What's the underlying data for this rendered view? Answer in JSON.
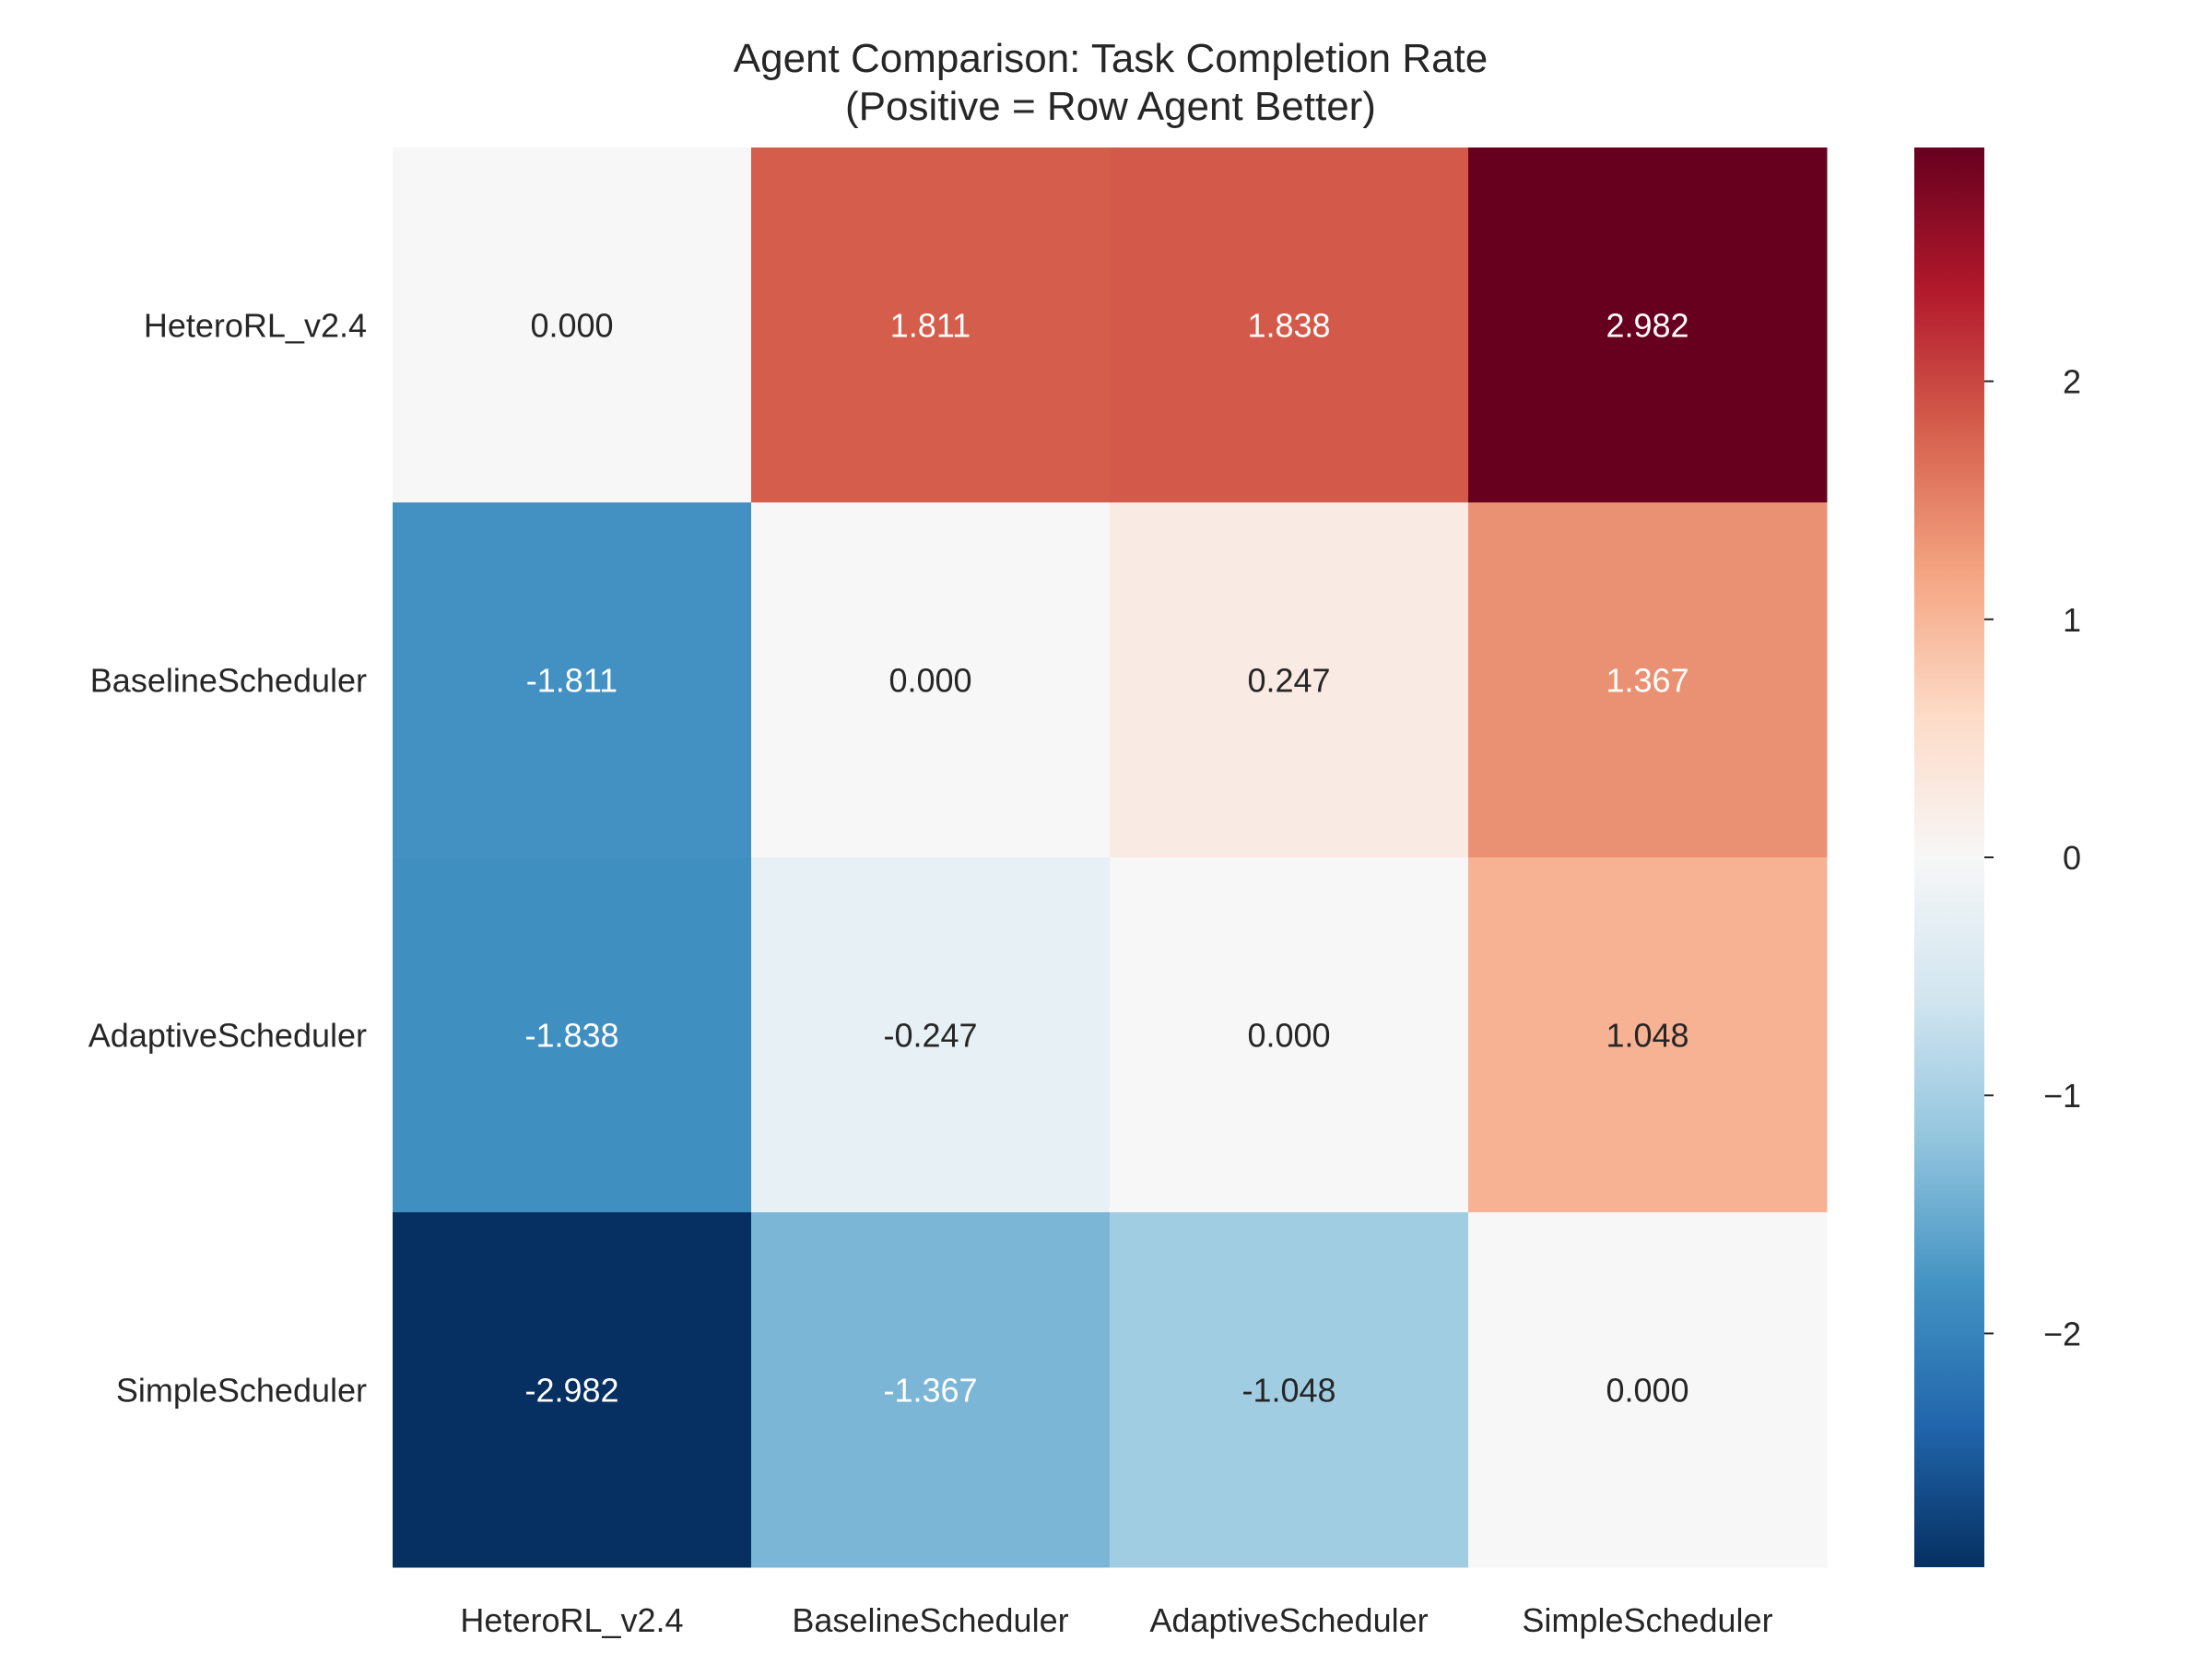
{
  "chart_data": {
    "type": "heatmap",
    "title": [
      "Agent Comparison: Task Completion Rate",
      "(Positive = Row Agent Better)"
    ],
    "row_labels": [
      "HeteroRL_v2.4",
      "BaselineScheduler",
      "AdaptiveScheduler",
      "SimpleScheduler"
    ],
    "col_labels": [
      "HeteroRL_v2.4",
      "BaselineScheduler",
      "AdaptiveScheduler",
      "SimpleScheduler"
    ],
    "values": [
      [
        0.0,
        1.811,
        1.838,
        2.982
      ],
      [
        -1.811,
        0.0,
        0.247,
        1.367
      ],
      [
        -1.838,
        -0.247,
        0.0,
        1.048
      ],
      [
        -2.982,
        -1.367,
        -1.048,
        0.0
      ]
    ],
    "cell_text": [
      [
        "0.000",
        "1.811",
        "1.838",
        "2.982"
      ],
      [
        "-1.811",
        "0.000",
        "0.247",
        "1.367"
      ],
      [
        "-1.838",
        "-0.247",
        "0.000",
        "1.048"
      ],
      [
        "-2.982",
        "-1.367",
        "-1.048",
        "0.000"
      ]
    ],
    "colormap": "RdBu_r",
    "vmin": -2.982,
    "vmax": 2.982,
    "colorbar": {
      "ticks": [
        2,
        1,
        0,
        -1,
        -2
      ],
      "tick_labels": [
        "2",
        "1",
        "0",
        "−1",
        "−2"
      ]
    },
    "grid": false,
    "text_colors": {
      "dark": "#262626",
      "light": "#ffffff"
    }
  }
}
